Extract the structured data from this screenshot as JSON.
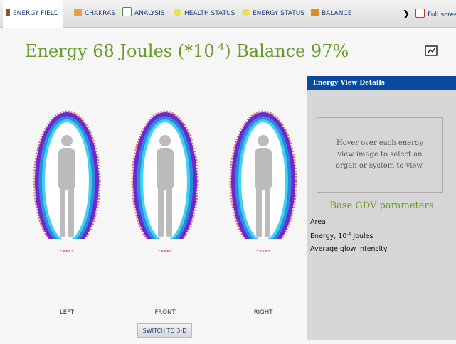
{
  "nav": {
    "tabs": [
      "ENERGY FIELD",
      "CHAKRAS",
      "ANALYSIS",
      "HEALTH STATUS",
      "ENERGY STATUS",
      "BALANCE"
    ],
    "fullscreen": "Full scree"
  },
  "header": {
    "title_main": "Energy 68 Joules (*10",
    "title_sup": "-4",
    "title_end": ") Balance 97%"
  },
  "views": {
    "labels": [
      "LEFT",
      "FRONT",
      "RIGHT"
    ],
    "button": "SWITCH TO 3-D"
  },
  "panel": {
    "title": "Energy View Details",
    "hint": "Hover over each energy view image to select an organ or system to view.",
    "params_title": "Base GDV parameters",
    "params": {
      "area": "Area",
      "energy_pre": "Energy, 10",
      "energy_sup": "-4",
      "energy_post": " Joules",
      "glow": "Average glow intensity"
    }
  }
}
